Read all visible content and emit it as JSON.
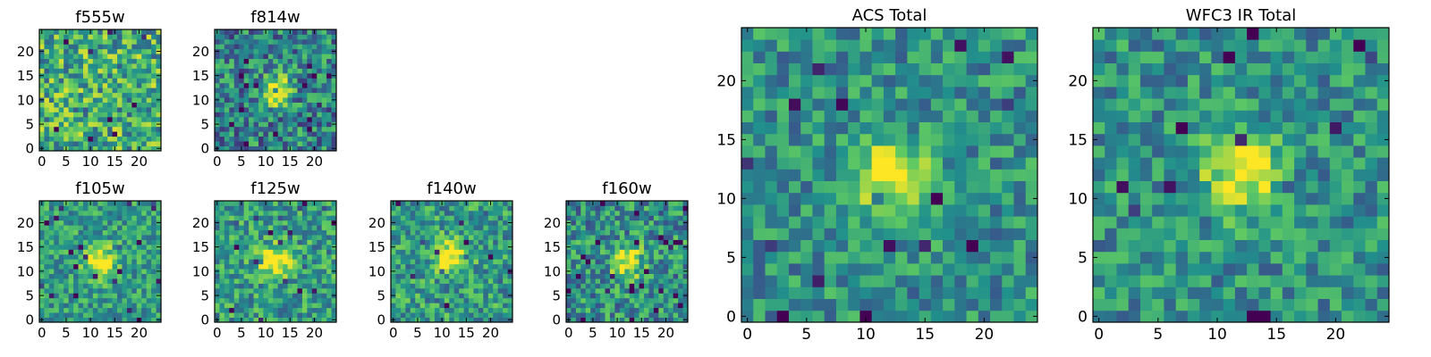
{
  "figure": {
    "colormap": "viridis",
    "colormap_stops": [
      "#440154",
      "#3b528b",
      "#21918c",
      "#5ec962",
      "#fde725"
    ],
    "axes_color": "#000000",
    "background": "#ffffff"
  },
  "chart_data": [
    {
      "type": "heatmap",
      "title": "f555w",
      "grid_size": 25,
      "xticks": [
        "0",
        "5",
        "10",
        "15",
        "20"
      ],
      "yticks": [
        "0",
        "5",
        "10",
        "15",
        "20"
      ],
      "xlim": [
        0,
        25
      ],
      "ylim": [
        0,
        25
      ],
      "source_peak": null,
      "noise": 0.65,
      "background_level": 0.62,
      "seed": 11
    },
    {
      "type": "heatmap",
      "title": "f814w",
      "grid_size": 25,
      "xticks": [
        "0",
        "5",
        "10",
        "15",
        "20"
      ],
      "yticks": [
        "0",
        "5",
        "10",
        "15",
        "20"
      ],
      "xlim": [
        0,
        25
      ],
      "ylim": [
        0,
        25
      ],
      "source_peak": [
        12,
        12
      ],
      "noise": 0.6,
      "background_level": 0.45,
      "seed": 23
    },
    {
      "type": "heatmap",
      "title": "f105w",
      "grid_size": 25,
      "xticks": [
        "0",
        "5",
        "10",
        "15",
        "20"
      ],
      "yticks": [
        "0",
        "5",
        "10",
        "15",
        "20"
      ],
      "xlim": [
        0,
        25
      ],
      "ylim": [
        0,
        25
      ],
      "source_peak": [
        12,
        12
      ],
      "noise": 0.45,
      "background_level": 0.55,
      "seed": 37
    },
    {
      "type": "heatmap",
      "title": "f125w",
      "grid_size": 25,
      "xticks": [
        "0",
        "5",
        "10",
        "15",
        "20"
      ],
      "yticks": [
        "0",
        "5",
        "10",
        "15",
        "20"
      ],
      "xlim": [
        0,
        25
      ],
      "ylim": [
        0,
        25
      ],
      "source_peak": [
        12,
        12
      ],
      "noise": 0.5,
      "background_level": 0.55,
      "seed": 41
    },
    {
      "type": "heatmap",
      "title": "f140w",
      "grid_size": 25,
      "xticks": [
        "0",
        "5",
        "10",
        "15",
        "20"
      ],
      "yticks": [
        "0",
        "5",
        "10",
        "15",
        "20"
      ],
      "xlim": [
        0,
        25
      ],
      "ylim": [
        0,
        25
      ],
      "source_peak": [
        12,
        13
      ],
      "noise": 0.5,
      "background_level": 0.55,
      "seed": 53
    },
    {
      "type": "heatmap",
      "title": "f160w",
      "grid_size": 25,
      "xticks": [
        "0",
        "5",
        "10",
        "15",
        "20"
      ],
      "yticks": [
        "0",
        "5",
        "10",
        "15",
        "20"
      ],
      "xlim": [
        0,
        25
      ],
      "ylim": [
        0,
        25
      ],
      "source_peak": [
        12,
        12
      ],
      "noise": 0.55,
      "background_level": 0.5,
      "seed": 67
    },
    {
      "type": "heatmap",
      "title": "ACS Total",
      "grid_size": 25,
      "xticks": [
        "0",
        "5",
        "10",
        "15",
        "20"
      ],
      "yticks": [
        "0",
        "5",
        "10",
        "15",
        "20"
      ],
      "xlim": [
        0,
        25
      ],
      "ylim": [
        0,
        25
      ],
      "source_peak": [
        12,
        12
      ],
      "noise": 0.45,
      "background_level": 0.5,
      "seed": 79
    },
    {
      "type": "heatmap",
      "title": "WFC3 IR Total",
      "grid_size": 25,
      "xticks": [
        "0",
        "5",
        "10",
        "15",
        "20"
      ],
      "yticks": [
        "0",
        "5",
        "10",
        "15",
        "20"
      ],
      "xlim": [
        0,
        25
      ],
      "ylim": [
        0,
        25
      ],
      "source_peak": [
        12,
        12
      ],
      "noise": 0.45,
      "background_level": 0.5,
      "seed": 97
    }
  ]
}
